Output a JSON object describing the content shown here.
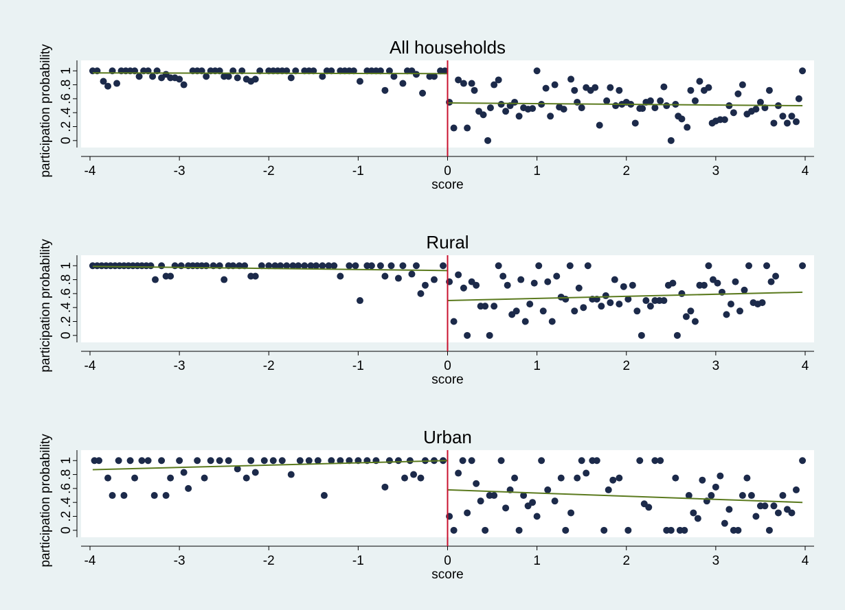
{
  "chart_data": [
    {
      "type": "scatter",
      "title": "All households",
      "xlabel": "score",
      "ylabel": "participation probability",
      "xlim": [
        -4.1,
        4.1
      ],
      "ylim": [
        -0.1,
        1.15
      ],
      "xticks": [
        -4,
        -3,
        -2,
        -1,
        0,
        1,
        2,
        3,
        4
      ],
      "yticks": [
        0,
        {
          "value": 0.2,
          "label": ".2"
        },
        {
          "value": 0.4,
          "label": ".4"
        },
        {
          "value": 0.6,
          "label": ".6"
        },
        {
          "value": 0.8,
          "label": ".8"
        },
        1
      ],
      "vline": {
        "x": 0,
        "color": "#c8102e"
      },
      "series": [
        {
          "type": "scatter",
          "color": "#1c2a4a",
          "x": [
            -3.97,
            -3.92,
            -3.85,
            -3.8,
            -3.75,
            -3.7,
            -3.65,
            -3.6,
            -3.55,
            -3.5,
            -3.45,
            -3.4,
            -3.35,
            -3.3,
            -3.25,
            -3.2,
            -3.15,
            -3.1,
            -3.05,
            -3.0,
            -2.95,
            -2.85,
            -2.8,
            -2.75,
            -2.7,
            -2.65,
            -2.6,
            -2.55,
            -2.5,
            -2.45,
            -2.4,
            -2.35,
            -2.3,
            -2.25,
            -2.2,
            -2.15,
            -2.1,
            -2.0,
            -1.95,
            -1.9,
            -1.85,
            -1.8,
            -1.75,
            -1.7,
            -1.6,
            -1.55,
            -1.5,
            -1.4,
            -1.35,
            -1.3,
            -1.2,
            -1.15,
            -1.1,
            -1.05,
            -0.98,
            -0.9,
            -0.85,
            -0.8,
            -0.75,
            -0.7,
            -0.65,
            -0.6,
            -0.5,
            -0.45,
            -0.4,
            -0.35,
            -0.28,
            -0.2,
            -0.15,
            -0.08,
            -0.03,
            0.02,
            0.07,
            0.12,
            0.18,
            0.22,
            0.27,
            0.3,
            0.35,
            0.4,
            0.45,
            0.48,
            0.52,
            0.57,
            0.6,
            0.65,
            0.7,
            0.75,
            0.8,
            0.85,
            0.9,
            0.95,
            1.0,
            1.05,
            1.1,
            1.15,
            1.2,
            1.25,
            1.3,
            1.38,
            1.42,
            1.45,
            1.5,
            1.55,
            1.6,
            1.65,
            1.7,
            1.78,
            1.82,
            1.88,
            1.92,
            1.95,
            2.0,
            2.05,
            2.1,
            2.15,
            2.18,
            2.22,
            2.27,
            2.32,
            2.38,
            2.42,
            2.45,
            2.5,
            2.55,
            2.58,
            2.62,
            2.68,
            2.72,
            2.77,
            2.82,
            2.87,
            2.92,
            2.96,
            3.0,
            3.05,
            3.1,
            3.15,
            3.2,
            3.25,
            3.3,
            3.35,
            3.4,
            3.45,
            3.5,
            3.55,
            3.6,
            3.65,
            3.7,
            3.75,
            3.8,
            3.85,
            3.9,
            3.93,
            3.97
          ],
          "values": [
            1,
            1,
            0.85,
            0.78,
            1,
            0.82,
            1,
            1,
            1,
            1,
            0.92,
            1,
            1,
            0.92,
            1,
            0.9,
            0.95,
            0.9,
            0.9,
            0.88,
            0.8,
            1,
            1,
            1,
            0.92,
            1,
            1,
            1,
            0.92,
            0.92,
            1,
            0.9,
            1,
            0.88,
            0.85,
            0.88,
            1,
            1,
            1,
            1,
            1,
            1,
            0.9,
            1,
            1,
            1,
            1,
            0.92,
            1,
            1,
            1,
            1,
            1,
            1,
            0.85,
            1,
            1,
            1,
            1,
            0.72,
            1,
            0.92,
            0.82,
            1,
            1,
            0.95,
            0.68,
            0.92,
            0.92,
            1,
            1,
            0.55,
            0.18,
            0.87,
            0.82,
            0.18,
            0.82,
            0.72,
            0.42,
            0.37,
            0,
            0.47,
            0.8,
            0.87,
            0.52,
            0.42,
            0.5,
            0.55,
            0.35,
            0.47,
            0.45,
            0.46,
            1,
            0.52,
            0.75,
            0.35,
            0.8,
            0.48,
            0.45,
            0.88,
            0.72,
            0.55,
            0.47,
            0.76,
            0.72,
            0.76,
            0.22,
            0.57,
            0.76,
            0.5,
            0.72,
            0.52,
            0.55,
            0.52,
            0.25,
            0.46,
            0.46,
            0.55,
            0.57,
            0.47,
            0.57,
            0.77,
            0.5,
            0,
            0.52,
            0.35,
            0.31,
            0.19,
            0.72,
            0.57,
            0.85,
            0.72,
            0.76,
            0.25,
            0.28,
            0.3,
            0.3,
            0.5,
            0.4,
            0.67,
            0.8,
            0.38,
            0.42,
            0.45,
            0.55,
            0.47,
            0.72,
            0.25,
            0.5,
            0.35,
            0.25,
            0.35,
            0.27,
            0.6,
            1
          ]
        },
        {
          "type": "line",
          "color": "#5b7a1e",
          "x": [
            -3.97,
            0
          ],
          "values": [
            0.97,
            0.96
          ]
        },
        {
          "type": "line",
          "color": "#5b7a1e",
          "x": [
            0,
            3.97
          ],
          "values": [
            0.54,
            0.5
          ]
        }
      ]
    },
    {
      "type": "scatter",
      "title": "Rural",
      "xlabel": "score",
      "ylabel": "participation probability",
      "xlim": [
        -4.1,
        4.1
      ],
      "ylim": [
        -0.1,
        1.15
      ],
      "xticks": [
        -4,
        -3,
        -2,
        -1,
        0,
        1,
        2,
        3,
        4
      ],
      "yticks": [
        0,
        {
          "value": 0.2,
          "label": ".2"
        },
        {
          "value": 0.4,
          "label": ".4"
        },
        {
          "value": 0.6,
          "label": ".6"
        },
        {
          "value": 0.8,
          "label": ".8"
        },
        1
      ],
      "vline": {
        "x": 0,
        "color": "#c8102e"
      },
      "series": [
        {
          "type": "scatter",
          "color": "#1c2a4a",
          "x": [
            -3.97,
            -3.92,
            -3.87,
            -3.82,
            -3.77,
            -3.72,
            -3.67,
            -3.62,
            -3.57,
            -3.52,
            -3.47,
            -3.42,
            -3.37,
            -3.32,
            -3.27,
            -3.2,
            -3.15,
            -3.1,
            -3.05,
            -2.98,
            -2.9,
            -2.85,
            -2.8,
            -2.75,
            -2.7,
            -2.62,
            -2.55,
            -2.5,
            -2.45,
            -2.4,
            -2.33,
            -2.27,
            -2.2,
            -2.15,
            -2.08,
            -2.0,
            -1.93,
            -1.87,
            -1.8,
            -1.73,
            -1.67,
            -1.6,
            -1.53,
            -1.47,
            -1.4,
            -1.33,
            -1.27,
            -1.2,
            -1.1,
            -1.03,
            -0.98,
            -0.9,
            -0.85,
            -0.75,
            -0.7,
            -0.63,
            -0.55,
            -0.5,
            -0.4,
            -0.35,
            -0.3,
            -0.25,
            -0.15,
            -0.05,
            0.02,
            0.07,
            0.12,
            0.18,
            0.22,
            0.27,
            0.32,
            0.37,
            0.42,
            0.47,
            0.52,
            0.57,
            0.62,
            0.67,
            0.72,
            0.77,
            0.82,
            0.87,
            0.92,
            0.97,
            1.02,
            1.07,
            1.12,
            1.17,
            1.22,
            1.27,
            1.32,
            1.37,
            1.42,
            1.47,
            1.52,
            1.57,
            1.62,
            1.67,
            1.72,
            1.77,
            1.82,
            1.87,
            1.92,
            1.97,
            2.02,
            2.07,
            2.12,
            2.17,
            2.22,
            2.27,
            2.32,
            2.37,
            2.42,
            2.47,
            2.52,
            2.57,
            2.62,
            2.67,
            2.72,
            2.77,
            2.82,
            2.87,
            2.92,
            2.97,
            3.02,
            3.07,
            3.12,
            3.17,
            3.22,
            3.27,
            3.32,
            3.37,
            3.42,
            3.47,
            3.52,
            3.57,
            3.62,
            3.67,
            3.97
          ],
          "values": [
            1,
            1,
            1,
            1,
            1,
            1,
            1,
            1,
            1,
            1,
            1,
            1,
            1,
            1,
            0.8,
            1,
            0.85,
            0.85,
            1,
            1,
            1,
            1,
            1,
            1,
            1,
            1,
            1,
            0.8,
            1,
            1,
            1,
            1,
            0.85,
            0.85,
            1,
            1,
            1,
            1,
            1,
            1,
            1,
            1,
            1,
            1,
            1,
            1,
            1,
            0.85,
            1,
            1,
            0.5,
            1,
            1,
            1,
            0.85,
            1,
            0.82,
            1,
            0.88,
            1,
            0.6,
            0.72,
            0.8,
            1,
            0.77,
            0.2,
            0.87,
            0.68,
            0,
            0.77,
            0.72,
            0.42,
            0.42,
            0,
            0.42,
            1,
            0.85,
            0.72,
            0.3,
            0.35,
            0.8,
            0.2,
            0.45,
            0.75,
            1,
            0.35,
            0.77,
            0.2,
            0.85,
            0.55,
            0.52,
            1,
            0.35,
            0.68,
            0.4,
            1,
            0.52,
            0.52,
            0.42,
            0.57,
            0.47,
            0.8,
            0.45,
            0.7,
            0.52,
            0.72,
            0.35,
            0,
            0.5,
            0.42,
            0.5,
            0.5,
            0.5,
            0.72,
            0.75,
            0,
            0.6,
            0.27,
            0.35,
            0.2,
            0.72,
            0.72,
            1,
            0.8,
            0.75,
            0.62,
            0.3,
            0.45,
            0.77,
            0.35,
            0.65,
            1,
            0.47,
            0.45,
            0.47,
            1,
            0.77,
            0.85,
            1
          ]
        },
        {
          "type": "line",
          "color": "#5b7a1e",
          "x": [
            -3.97,
            0
          ],
          "values": [
            0.99,
            0.93
          ]
        },
        {
          "type": "line",
          "color": "#5b7a1e",
          "x": [
            0,
            3.97
          ],
          "values": [
            0.5,
            0.62
          ]
        }
      ]
    },
    {
      "type": "scatter",
      "title": "Urban",
      "xlabel": "score",
      "ylabel": "participation probability",
      "xlim": [
        -4.1,
        4.1
      ],
      "ylim": [
        -0.1,
        1.15
      ],
      "xticks": [
        -4,
        -3,
        -2,
        -1,
        0,
        1,
        2,
        3,
        4
      ],
      "yticks": [
        0,
        {
          "value": 0.2,
          "label": ".2"
        },
        {
          "value": 0.4,
          "label": ".4"
        },
        {
          "value": 0.6,
          "label": ".6"
        },
        {
          "value": 0.8,
          "label": ".8"
        },
        1
      ],
      "vline": {
        "x": 0,
        "color": "#c8102e"
      },
      "series": [
        {
          "type": "scatter",
          "color": "#1c2a4a",
          "x": [
            -3.95,
            -3.9,
            -3.8,
            -3.75,
            -3.68,
            -3.62,
            -3.55,
            -3.5,
            -3.42,
            -3.35,
            -3.28,
            -3.2,
            -3.15,
            -3.1,
            -3.0,
            -2.95,
            -2.9,
            -2.8,
            -2.72,
            -2.65,
            -2.55,
            -2.45,
            -2.35,
            -2.25,
            -2.2,
            -2.15,
            -2.05,
            -1.95,
            -1.85,
            -1.75,
            -1.65,
            -1.55,
            -1.45,
            -1.38,
            -1.3,
            -1.2,
            -1.1,
            -1.0,
            -0.9,
            -0.8,
            -0.7,
            -0.65,
            -0.55,
            -0.48,
            -0.42,
            -0.38,
            -0.3,
            -0.25,
            -0.15,
            -0.05,
            0.02,
            0.07,
            0.12,
            0.17,
            0.22,
            0.27,
            0.32,
            0.37,
            0.42,
            0.47,
            0.52,
            0.6,
            0.65,
            0.7,
            0.75,
            0.8,
            0.85,
            0.9,
            0.95,
            1.0,
            1.05,
            1.12,
            1.2,
            1.27,
            1.32,
            1.38,
            1.45,
            1.5,
            1.55,
            1.62,
            1.67,
            1.75,
            1.8,
            1.85,
            1.92,
            2.02,
            2.15,
            2.2,
            2.25,
            2.32,
            2.38,
            2.45,
            2.5,
            2.55,
            2.6,
            2.65,
            2.7,
            2.75,
            2.8,
            2.85,
            2.9,
            2.95,
            3.0,
            3.05,
            3.1,
            3.15,
            3.2,
            3.25,
            3.3,
            3.35,
            3.4,
            3.45,
            3.5,
            3.55,
            3.6,
            3.65,
            3.7,
            3.75,
            3.8,
            3.85,
            3.9,
            3.97
          ],
          "values": [
            1,
            1,
            0.75,
            0.5,
            1,
            0.5,
            1,
            0.75,
            1,
            1,
            0.5,
            1,
            0.5,
            0.75,
            1,
            0.83,
            0.6,
            1,
            0.75,
            1,
            1,
            1,
            0.88,
            0.75,
            1,
            0.83,
            1,
            1,
            1,
            0.8,
            1,
            1,
            1,
            0.5,
            1,
            1,
            1,
            1,
            1,
            1,
            0.62,
            1,
            1,
            0.75,
            1,
            0.8,
            0.75,
            1,
            1,
            1,
            0.2,
            0,
            0.82,
            1,
            0.25,
            1,
            0.67,
            0.42,
            0,
            0.5,
            0.5,
            1,
            0.32,
            0.58,
            0.75,
            0,
            0.5,
            0.35,
            0.4,
            0.2,
            1,
            0.58,
            0.42,
            0.75,
            0,
            0.25,
            0.75,
            1,
            0.82,
            1,
            1,
            0,
            0.58,
            0.72,
            0.75,
            0,
            1,
            0.38,
            0.33,
            1,
            1,
            0,
            0,
            0.75,
            0,
            0,
            0.5,
            0.25,
            0.17,
            0.72,
            0.42,
            0.5,
            0.62,
            0.78,
            0.1,
            0.3,
            0,
            0,
            0.5,
            0.75,
            0.5,
            0.2,
            0.35,
            0.35,
            0,
            0.35,
            0.25,
            0.5,
            0.3,
            0.25,
            0.58,
            1
          ]
        },
        {
          "type": "line",
          "color": "#5b7a1e",
          "x": [
            -3.97,
            0
          ],
          "values": [
            0.87,
            1.0
          ]
        },
        {
          "type": "line",
          "color": "#5b7a1e",
          "x": [
            0,
            3.97
          ],
          "values": [
            0.58,
            0.4
          ]
        }
      ]
    }
  ]
}
